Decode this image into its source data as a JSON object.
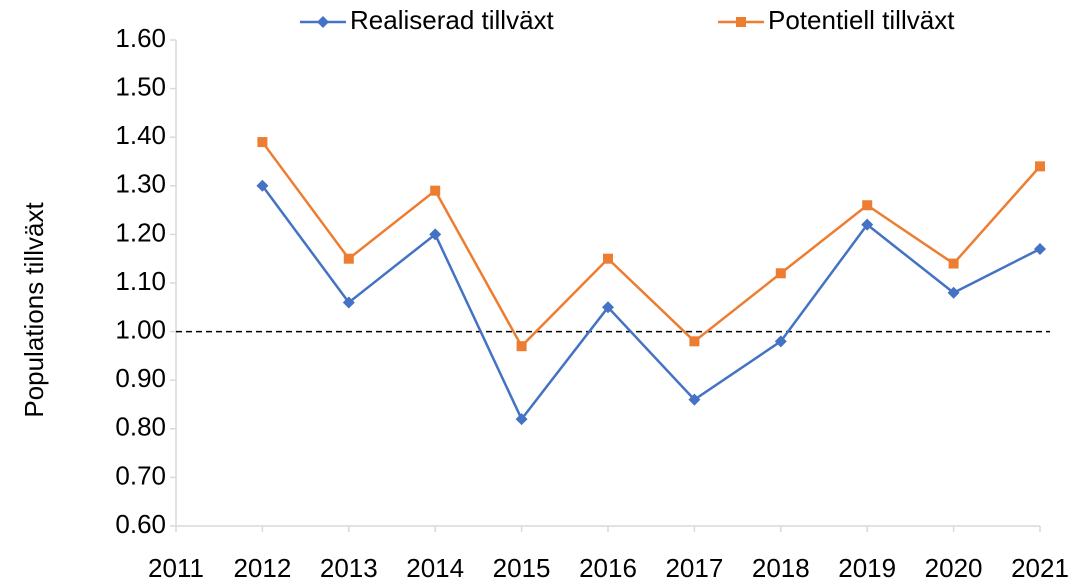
{
  "chart_data": {
    "type": "line",
    "y_label": "Populations tillväxt",
    "x": [
      2012,
      2013,
      2014,
      2015,
      2016,
      2017,
      2018,
      2019,
      2020,
      2021
    ],
    "series": [
      {
        "name": "Realiserad tillväxt",
        "color": "#4472c4",
        "marker": "diamond",
        "values": [
          1.3,
          1.06,
          1.2,
          0.82,
          1.05,
          0.86,
          0.98,
          1.22,
          1.08,
          1.17
        ]
      },
      {
        "name": "Potentiell tillväxt",
        "color": "#ed7d31",
        "marker": "square",
        "values": [
          1.39,
          1.15,
          1.29,
          0.97,
          1.15,
          0.98,
          1.12,
          1.26,
          1.14,
          1.34
        ]
      }
    ],
    "xlim": [
      2011,
      2021
    ],
    "xticks": [
      2011,
      2012,
      2013,
      2014,
      2015,
      2016,
      2017,
      2018,
      2019,
      2020,
      2021
    ],
    "ylim": [
      0.6,
      1.6
    ],
    "yticks": [
      {
        "value": 0.6,
        "label": "0.60"
      },
      {
        "value": 0.7,
        "label": "0.70"
      },
      {
        "value": 0.8,
        "label": "0.80"
      },
      {
        "value": 0.9,
        "label": "0.90"
      },
      {
        "value": 1.0,
        "label": "1.00"
      },
      {
        "value": 1.1,
        "label": "1.10"
      },
      {
        "value": 1.2,
        "label": "1.20"
      },
      {
        "value": 1.3,
        "label": "1.30"
      },
      {
        "value": 1.4,
        "label": "1.40"
      },
      {
        "value": 1.5,
        "label": "1.50"
      },
      {
        "value": 1.6,
        "label": "1.60"
      }
    ],
    "reference_line": 1.0,
    "legend": "top"
  }
}
